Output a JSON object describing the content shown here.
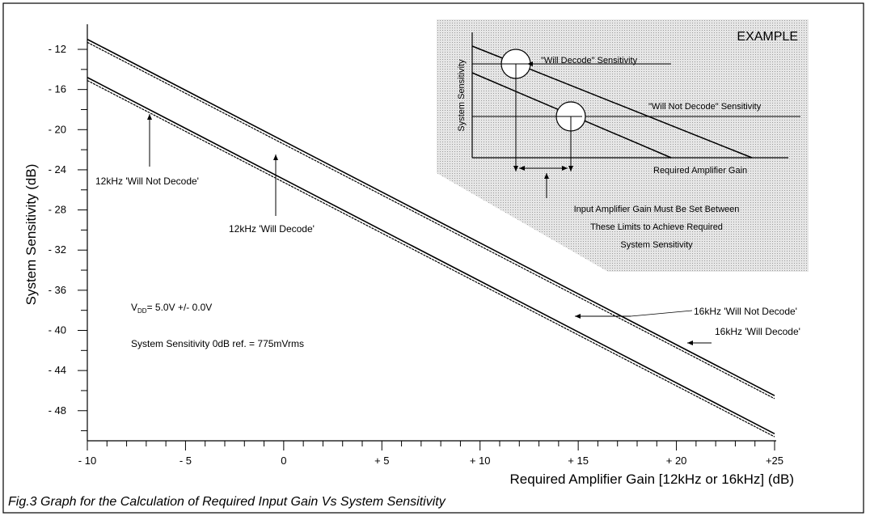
{
  "chart_data": {
    "type": "line",
    "title": "",
    "xlabel": "Required Amplifier Gain [12kHz or 16kHz] (dB)",
    "ylabel": "System Sensitivity (dB)",
    "xlim": [
      -10,
      25
    ],
    "ylim": [
      -51,
      -9.5
    ],
    "x_ticks": [
      -10,
      -5,
      0,
      5,
      10,
      15,
      20,
      25
    ],
    "x_tick_labels": [
      "- 10",
      "- 5",
      "0",
      "+ 5",
      "+ 10",
      "+ 15",
      "+ 20",
      "+25"
    ],
    "y_ticks": [
      -12,
      -16,
      -20,
      -24,
      -28,
      -32,
      -36,
      -40,
      -44,
      -48
    ],
    "y_tick_labels": [
      "- 12",
      "- 16",
      "- 20",
      "- 24",
      "- 28",
      "- 32",
      "- 36",
      "- 40",
      "- 44",
      "- 48"
    ],
    "grid": false,
    "series": [
      {
        "name": "12kHz 'Will Decode'",
        "x": [
          -10,
          25
        ],
        "y": [
          -11.0,
          -46.5
        ]
      },
      {
        "name": "16kHz 'Will Decode'",
        "x": [
          -10,
          25
        ],
        "y": [
          -11.3,
          -46.8
        ]
      },
      {
        "name": "12kHz 'Will Not Decode'",
        "x": [
          -10,
          25
        ],
        "y": [
          -14.8,
          -50.3
        ]
      },
      {
        "name": "16kHz 'Will Not Decode'",
        "x": [
          -10,
          25
        ],
        "y": [
          -15.1,
          -50.6
        ]
      }
    ],
    "annotations": [
      {
        "text": "12kHz 'Will Not Decode'"
      },
      {
        "text": "12kHz 'Will Decode'"
      },
      {
        "text": "16kHz 'Will Not Decode'"
      },
      {
        "text": "16kHz 'Will Decode'"
      }
    ]
  },
  "conditions": {
    "vdd_prefix": "V",
    "vdd_sub": "DD",
    "vdd_value": "= 5.0V +/- 0.0V",
    "reference": "System Sensitivity 0dB ref. = 775mVrms"
  },
  "example_inset": {
    "title": "EXAMPLE",
    "ylabel": "System Sensitivity",
    "xlabel": "Required Amplifier Gain",
    "will_decode": "\"Will Decode\" Sensitivity",
    "will_not_decode": "\"Will Not Decode\" Sensitivity",
    "note_lines": [
      "Input Amplifier Gain Must Be Set Between",
      "These Limits to Achieve Required",
      "System Sensitivity"
    ]
  },
  "caption": "Fig.3 Graph for the Calculation of Required Input Gain Vs System Sensitivity",
  "colors": {
    "ink": "#000000",
    "inset_fill": "#dcdcdc",
    "background": "#ffffff"
  }
}
